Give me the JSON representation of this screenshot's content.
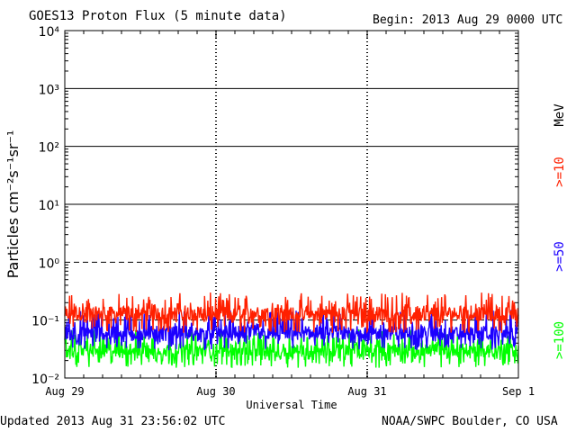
{
  "title": "GOES13 Proton Flux (5 minute data)",
  "begin": "Begin: 2013 Aug 29 0000 UTC",
  "updated": "Updated 2013 Aug 31 23:56:02 UTC",
  "credit": "NOAA/SWPC Boulder, CO USA",
  "colors": {
    "ge10": "#ff2000",
    "ge50": "#1c00ff",
    "ge100": "#00ff00",
    "axis": "#000000"
  },
  "chart_data": {
    "type": "line",
    "title": "GOES13 Proton Flux (5 minute data)",
    "xlabel": "Universal Time",
    "ylabel": "Particles cm⁻²s⁻¹sr⁻¹",
    "yscale": "log",
    "ylim": [
      0.01,
      10000
    ],
    "yticks": [
      0.01,
      0.1,
      1,
      10,
      100,
      1000,
      10000
    ],
    "ytick_labels": [
      "10⁻²",
      "10⁻¹",
      "10⁰",
      "10¹",
      "10²",
      "10³",
      "10⁴"
    ],
    "xlim": [
      "2013-08-29 00:00",
      "2013-09-01 00:00"
    ],
    "x_tick_labels": [
      "Aug 29",
      "Aug 30",
      "Aug 31",
      "Sep 1"
    ],
    "unit_label": "MeV",
    "series": [
      {
        "name": ">=10",
        "color": "#ff2000",
        "typical": 0.13,
        "range": [
          0.06,
          0.3
        ]
      },
      {
        "name": ">=50",
        "color": "#1c00ff",
        "typical": 0.06,
        "range": [
          0.03,
          0.15
        ]
      },
      {
        "name": ">=100",
        "color": "#00ff00",
        "typical": 0.03,
        "range": [
          0.015,
          0.07
        ]
      }
    ],
    "threshold_lines": [
      10,
      100,
      1000
    ],
    "grid": true
  }
}
